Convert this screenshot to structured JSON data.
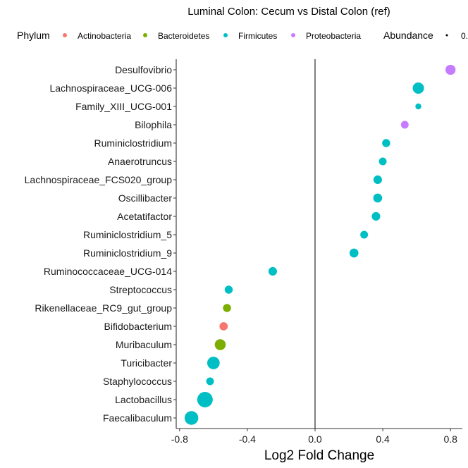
{
  "chart_data": {
    "type": "scatter",
    "title": "Luminal Colon: Cecum vs Distal Colon (ref)",
    "xlabel": "Log2 Fold Change",
    "ylabel": "",
    "xlim": [
      -0.82,
      0.87
    ],
    "xticks": [
      -0.8,
      -0.4,
      0.0,
      0.4,
      0.8
    ],
    "xtick_labels": [
      "-0.8",
      "-0.4",
      "0.0",
      "0.4",
      "0.8"
    ],
    "zero_line": true,
    "grid": false,
    "legend": {
      "placement": "top",
      "phylum_title": "Phylum",
      "abundance_title": "Abundance",
      "abundance_label": "0.",
      "phyla": [
        {
          "name": "Actinobacteria",
          "color": "#F8766D"
        },
        {
          "name": "Bacteroidetes",
          "color": "#7CAE00"
        },
        {
          "name": "Firmicutes",
          "color": "#00BFC4"
        },
        {
          "name": "Proteobacteria",
          "color": "#C77CFF"
        }
      ]
    },
    "points": [
      {
        "genus": "Desulfovibrio",
        "phylum": "Proteobacteria",
        "log2fc": 0.8,
        "size": 0.55
      },
      {
        "genus": "Lachnospiraceae_UCG-006",
        "phylum": "Firmicutes",
        "log2fc": 0.61,
        "size": 0.65
      },
      {
        "genus": "Family_XIII_UCG-001",
        "phylum": "Firmicutes",
        "log2fc": 0.61,
        "size": 0.2
      },
      {
        "genus": "Bilophila",
        "phylum": "Proteobacteria",
        "log2fc": 0.53,
        "size": 0.35
      },
      {
        "genus": "Ruminiclostridium",
        "phylum": "Firmicutes",
        "log2fc": 0.42,
        "size": 0.38
      },
      {
        "genus": "Anaerotruncus",
        "phylum": "Firmicutes",
        "log2fc": 0.4,
        "size": 0.35
      },
      {
        "genus": "Lachnospiraceae_FCS020_group",
        "phylum": "Firmicutes",
        "log2fc": 0.37,
        "size": 0.42
      },
      {
        "genus": "Oscillibacter",
        "phylum": "Firmicutes",
        "log2fc": 0.37,
        "size": 0.45
      },
      {
        "genus": "Acetatifactor",
        "phylum": "Firmicutes",
        "log2fc": 0.36,
        "size": 0.42
      },
      {
        "genus": "Ruminiclostridium_5",
        "phylum": "Firmicutes",
        "log2fc": 0.29,
        "size": 0.35
      },
      {
        "genus": "Ruminiclostridium_9",
        "phylum": "Firmicutes",
        "log2fc": 0.23,
        "size": 0.45
      },
      {
        "genus": "Ruminococcaceae_UCG-014",
        "phylum": "Firmicutes",
        "log2fc": -0.25,
        "size": 0.42
      },
      {
        "genus": "Streptococcus",
        "phylum": "Firmicutes",
        "log2fc": -0.51,
        "size": 0.38
      },
      {
        "genus": "Rikenellaceae_RC9_gut_group",
        "phylum": "Bacteroidetes",
        "log2fc": -0.52,
        "size": 0.38
      },
      {
        "genus": "Bifidobacterium",
        "phylum": "Actinobacteria",
        "log2fc": -0.54,
        "size": 0.4
      },
      {
        "genus": "Muribaculum",
        "phylum": "Bacteroidetes",
        "log2fc": -0.56,
        "size": 0.62
      },
      {
        "genus": "Turicibacter",
        "phylum": "Firmicutes",
        "log2fc": -0.6,
        "size": 0.75
      },
      {
        "genus": "Staphylococcus",
        "phylum": "Firmicutes",
        "log2fc": -0.62,
        "size": 0.35
      },
      {
        "genus": "Lactobacillus",
        "phylum": "Firmicutes",
        "log2fc": -0.65,
        "size": 1.0
      },
      {
        "genus": "Faecalibaculum",
        "phylum": "Firmicutes",
        "log2fc": -0.73,
        "size": 0.85
      }
    ]
  }
}
